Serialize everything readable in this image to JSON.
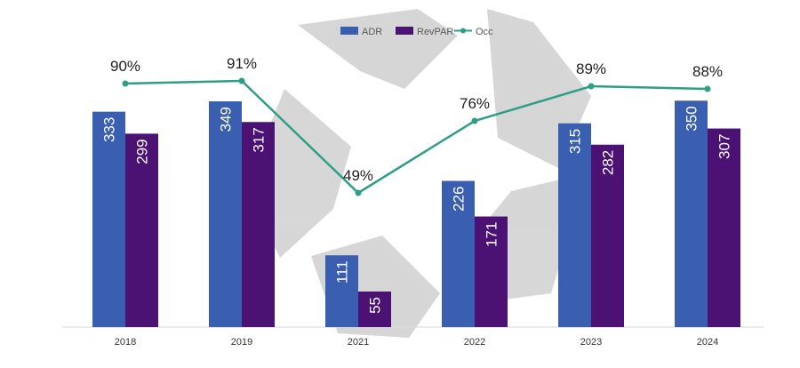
{
  "chart_data": {
    "type": "bar",
    "categories": [
      "2018",
      "2019",
      "2021",
      "2022",
      "2023",
      "2024"
    ],
    "series": [
      {
        "name": "ADR",
        "kind": "bar",
        "color": "#3a5fb0",
        "values": [
          333,
          349,
          111,
          226,
          315,
          350
        ]
      },
      {
        "name": "RevPAR",
        "kind": "bar",
        "color": "#4b1274",
        "values": [
          299,
          317,
          55,
          171,
          282,
          307
        ]
      },
      {
        "name": "Occ",
        "kind": "line",
        "color": "#2e9e86",
        "values": [
          90,
          91,
          49,
          76,
          89,
          88
        ],
        "value_suffix": "%"
      }
    ],
    "bar_ylim": [
      0,
      400
    ],
    "occ_ylim": [
      0,
      100
    ],
    "legend_position": "top-center",
    "grid": false
  }
}
